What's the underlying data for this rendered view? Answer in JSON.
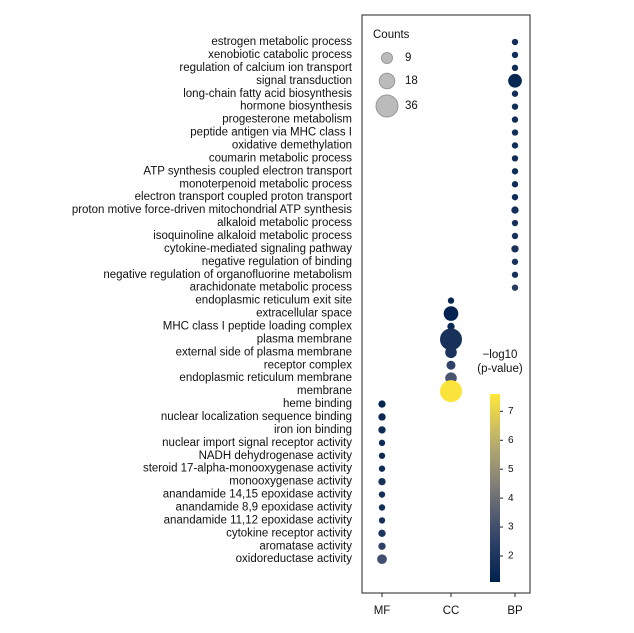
{
  "chart_data": {
    "type": "bubble",
    "series": [
      {
        "name": "MF",
        "terms": [
          "heme binding",
          "nuclear localization sequence binding",
          "iron ion binding",
          "nuclear import signal receptor activity",
          "NADH dehydrogenase activity",
          "steroid 17-alpha-monooxygenase activity",
          "monooxygenase activity",
          "anandamide 14,15 epoxidase activity",
          "anandamide 8,9 epoxidase activity",
          "anandamide 11,12 epoxidase activity",
          "cytokine receptor activity",
          "aromatase activity",
          "oxidoreductase activity"
        ],
        "counts": [
          4,
          4,
          4,
          3,
          3,
          3,
          4,
          3,
          3,
          3,
          4,
          4,
          7
        ],
        "values": [
          1.3,
          1.4,
          1.5,
          1.5,
          1.5,
          1.6,
          1.8,
          1.7,
          1.7,
          1.7,
          2.0,
          2.5,
          3.0
        ]
      },
      {
        "name": "CC",
        "terms": [
          "endoplasmic reticulum exit site",
          "extracellular space",
          "MHC class I peptide loading complex",
          "plasma membrane",
          "external side of plasma membrane",
          "receptor complex",
          "endoplasmic reticulum membrane",
          "membrane"
        ],
        "counts": [
          3,
          16,
          4,
          36,
          10,
          6,
          10,
          36
        ],
        "values": [
          1.3,
          1.2,
          1.4,
          1.8,
          1.9,
          2.6,
          3.2,
          7.5
        ]
      },
      {
        "name": "BP",
        "terms": [
          "estrogen metabolic process",
          "xenobiotic catabolic process",
          "regulation of calcium ion transport",
          "signal transduction",
          "long-chain fatty acid biosynthesis",
          "hormone biosynthesis",
          "progesterone metabolism",
          "peptide antigen via MHC class I",
          "oxidative demethylation",
          "coumarin metabolic process",
          "ATP synthesis coupled electron transport",
          "monoterpenoid metabolic process",
          "electron transport coupled proton transport",
          "proton motive force-driven mitochondrial ATP synthesis",
          "alkaloid metabolic process",
          "isoquinoline alkaloid metabolic process",
          "cytokine-mediated signaling pathway",
          "negative regulation of binding",
          "negative regulation of organofluorine metabolism",
          "arachidonate metabolic process"
        ],
        "counts": [
          3,
          3,
          3,
          14,
          3,
          3,
          3,
          3,
          3,
          3,
          3,
          3,
          3,
          4,
          3,
          3,
          4,
          3,
          3,
          3
        ],
        "values": [
          1.6,
          1.6,
          1.6,
          1.3,
          1.6,
          1.6,
          1.6,
          1.6,
          1.6,
          1.6,
          1.6,
          1.6,
          1.6,
          1.7,
          1.8,
          1.8,
          1.9,
          1.8,
          1.8,
          2.2
        ]
      }
    ],
    "size_legend": {
      "title": "Counts",
      "values": [
        9,
        18,
        36
      ]
    },
    "color_label": [
      "−log10",
      "(p-value)"
    ],
    "clim": [
      1.1,
      7.6
    ],
    "cticks": [
      2,
      3,
      4,
      5,
      6,
      7
    ],
    "colormap": "cividis"
  }
}
